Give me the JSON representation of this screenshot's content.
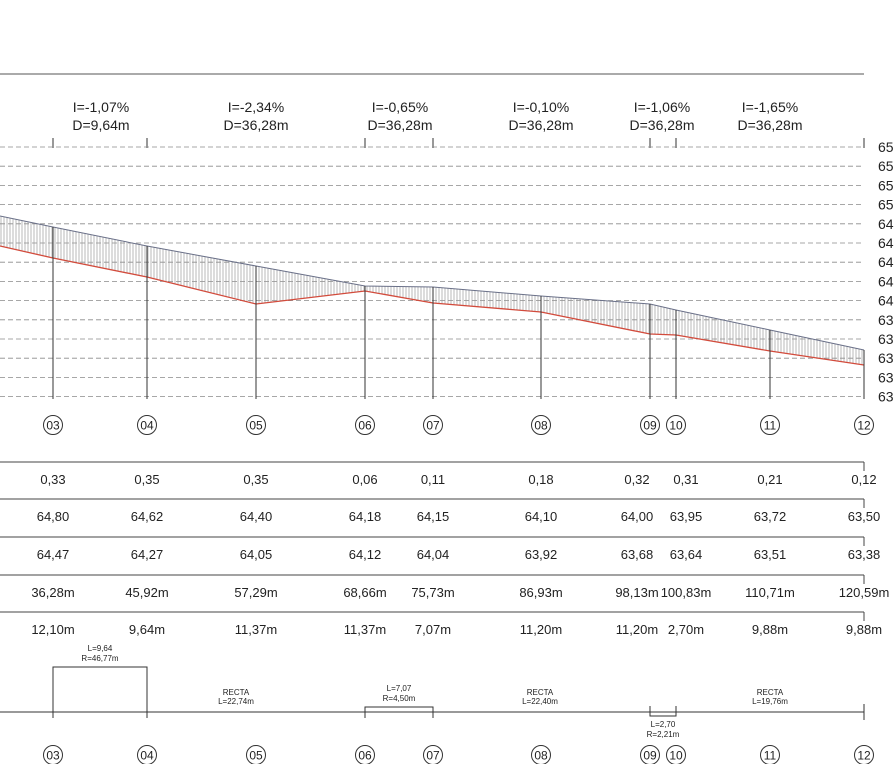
{
  "colors": {
    "terrain": "#d24b3c",
    "design": "#6a7088",
    "hatch": "#9a9a9a",
    "dash": "#8a8a8a",
    "line": "#333333"
  },
  "elevation_labels": [
    "65",
    "65",
    "65",
    "65",
    "64",
    "64",
    "64",
    "64",
    "64",
    "63",
    "63",
    "63",
    "63",
    "63"
  ],
  "grades": [
    {
      "i": "I=-1,07%",
      "d": "D=9,64m"
    },
    {
      "i": "I=-2,34%",
      "d": "D=36,28m"
    },
    {
      "i": "I=-0,65%",
      "d": "D=36,28m"
    },
    {
      "i": "I=-0,10%",
      "d": "D=36,28m"
    },
    {
      "i": "I=-1,06%",
      "d": "D=36,28m"
    },
    {
      "i": "I=-1,65%",
      "d": "D=36,28m"
    }
  ],
  "stations": [
    "03",
    "04",
    "05",
    "06",
    "07",
    "08",
    "09",
    "10",
    "11",
    "12"
  ],
  "table": {
    "row1": [
      "0,33",
      "0,35",
      "0,35",
      "0,06",
      "0,11",
      "0,18",
      "0,32",
      "0,31",
      "0,21",
      "0,12"
    ],
    "row2": [
      "64,80",
      "64,62",
      "64,40",
      "64,18",
      "64,15",
      "64,10",
      "64,00",
      "63,95",
      "63,72",
      "63,50"
    ],
    "row3": [
      "64,47",
      "64,27",
      "64,05",
      "64,12",
      "64,04",
      "63,92",
      "63,68",
      "63,64",
      "63,51",
      "63,38"
    ],
    "row4": [
      "36,28m",
      "45,92m",
      "57,29m",
      "68,66m",
      "75,73m",
      "86,93m",
      "98,13m",
      "100,83m",
      "110,71m",
      "120,59m"
    ],
    "row5": [
      "12,10m",
      "9,64m",
      "11,37m",
      "11,37m",
      "7,07m",
      "11,20m",
      "11,20m",
      "2,70m",
      "9,88m",
      "9,88m"
    ]
  },
  "alignment": {
    "curve1": {
      "l": "L=9,64",
      "r": "R=46,77m"
    },
    "curve2": {
      "l": "L=7,07",
      "r": "R=4,50m"
    },
    "curve3": {
      "l": "L=2,70",
      "r": "R=2,21m"
    },
    "recta1": {
      "label": "RECTA",
      "l": "L=22,74m"
    },
    "recta2": {
      "label": "RECTA",
      "l": "L=22,40m"
    },
    "recta3": {
      "label": "RECTA",
      "l": "L=19,76m"
    }
  }
}
